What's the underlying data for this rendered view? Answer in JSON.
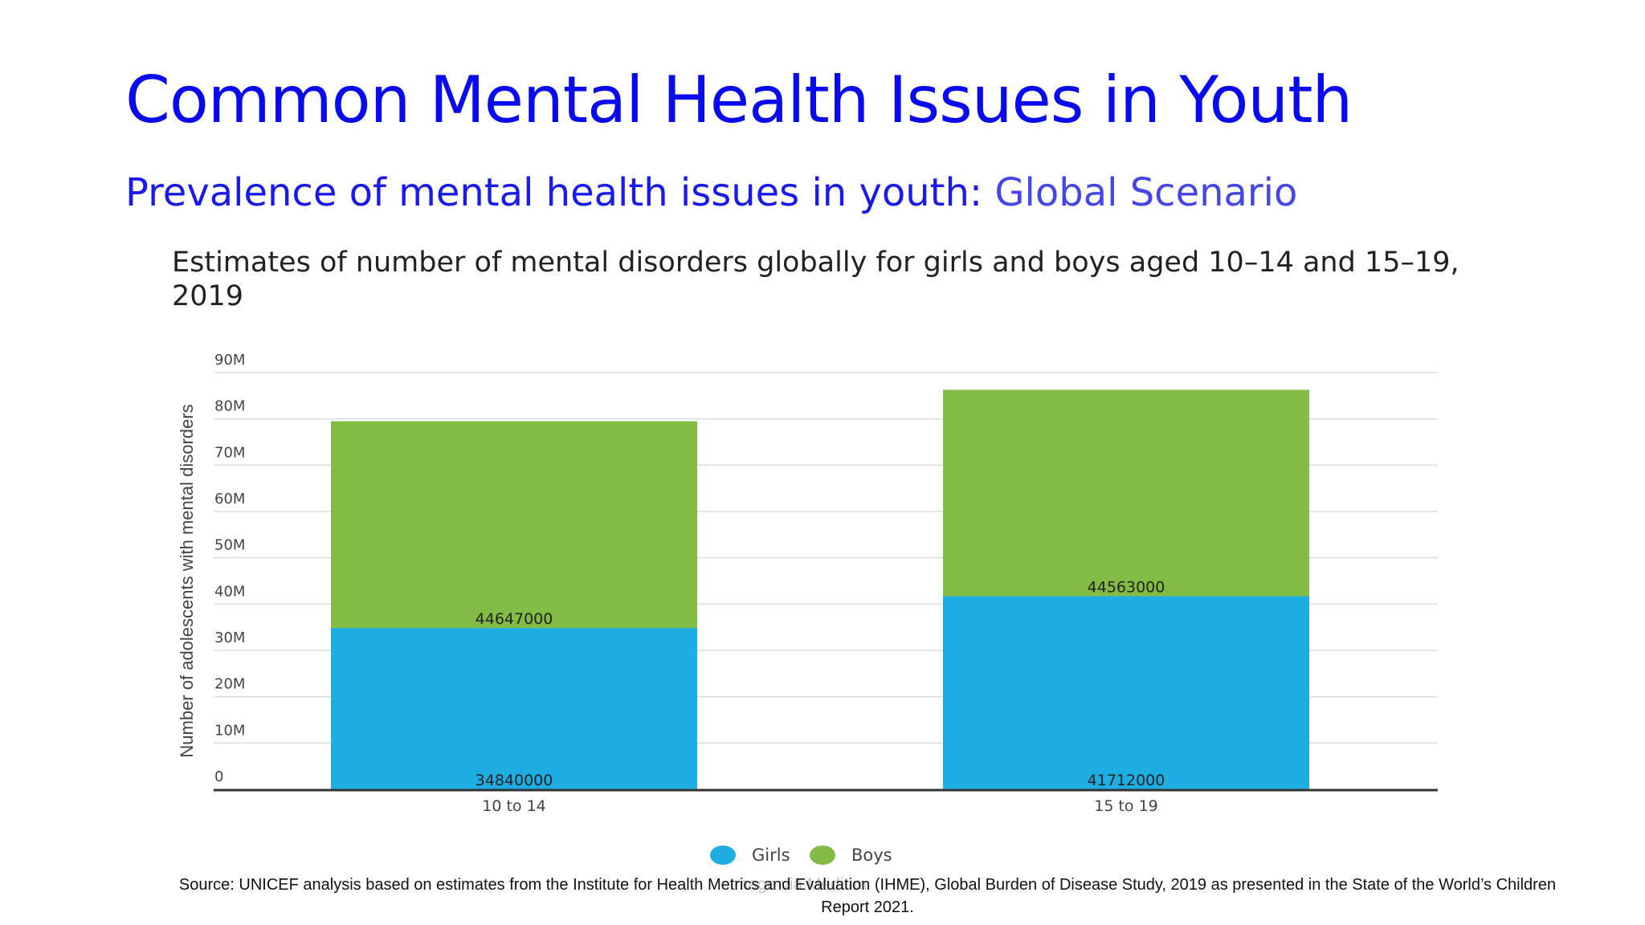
{
  "slide": {
    "title": "Common Mental Health Issues in Youth",
    "subtitle_main": "Prevalence of mental health issues in youth: ",
    "subtitle_accent": "Global Scenario",
    "source": "Source: UNICEF analysis based on estimates from the Institute for Health Metrics and Evaluation (IHME), Global Burden of Disease Study, 2019 as presented in the State of the World’s Children Report 2021.",
    "watermark": "Image via Medium"
  },
  "colors": {
    "title": "#0a0aef",
    "girls": "#1eade3",
    "boys": "#82bc44",
    "grid": "#dddddd",
    "axis": "#333333"
  },
  "chart_data": {
    "type": "bar",
    "stacked": true,
    "title": "Estimates of number of mental disorders globally for girls and boys aged 10–14 and 15–19, 2019",
    "xlabel": "",
    "ylabel": "Number of adolescents with mental disorders",
    "categories": [
      "10 to 14",
      "15 to 19"
    ],
    "series": [
      {
        "name": "Girls",
        "color": "#1eade3",
        "values": [
          34840000,
          41712000
        ]
      },
      {
        "name": "Boys",
        "color": "#82bc44",
        "values": [
          44647000,
          44563000
        ]
      }
    ],
    "ylim": [
      0,
      90000000
    ],
    "yticks": [
      0,
      10000000,
      20000000,
      30000000,
      40000000,
      50000000,
      60000000,
      70000000,
      80000000,
      90000000
    ],
    "ytick_labels": [
      "0",
      "10M",
      "20M",
      "30M",
      "40M",
      "50M",
      "60M",
      "70M",
      "80M",
      "90M"
    ],
    "grid": true,
    "legend_position": "bottom"
  }
}
